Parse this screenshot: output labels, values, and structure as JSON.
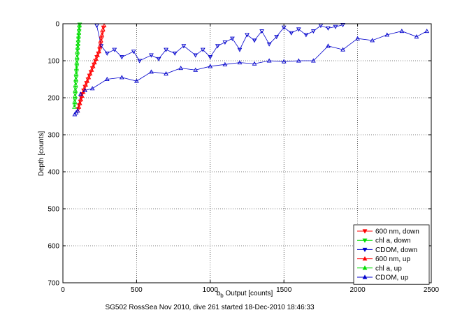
{
  "chart_data": {
    "type": "scatter",
    "title": "",
    "footer": "SG502 RossSea Nov 2010, dive 261 started 18-Dec-2010 18:46:33",
    "xlabel": "b",
    "xlabel_sub": "b",
    "xlabel_rest": " Output [counts]",
    "ylabel": "Depth [counts]",
    "xlim": [
      0,
      2500
    ],
    "ylim": [
      700,
      0
    ],
    "y_reversed": true,
    "grid": true,
    "legend_position": "bottom-right",
    "x_ticks": [
      "0",
      "500",
      "1000",
      "1500",
      "2000",
      "2500"
    ],
    "y_ticks": [
      "0",
      "100",
      "200",
      "300",
      "400",
      "500",
      "600",
      "700"
    ],
    "series": [
      {
        "name": "600 nm, down",
        "color": "#ff0000",
        "marker": "triangle-down",
        "x": [
          105,
          110,
          118,
          125,
          130,
          140,
          150,
          160,
          170,
          180,
          190,
          200,
          210,
          220,
          230,
          240,
          250,
          255,
          262,
          268,
          275
        ],
        "y": [
          230,
          220,
          210,
          200,
          190,
          180,
          170,
          160,
          150,
          140,
          130,
          120,
          110,
          100,
          90,
          80,
          70,
          55,
          40,
          25,
          10
        ]
      },
      {
        "name": "chl a, down",
        "color": "#00dd00",
        "marker": "triangle-down",
        "x": [
          80,
          82,
          84,
          86,
          88,
          90,
          92,
          94,
          96,
          98,
          100,
          102,
          104,
          106,
          108,
          110,
          112,
          114
        ],
        "y": [
          220,
          205,
          190,
          175,
          160,
          145,
          130,
          115,
          100,
          85,
          70,
          60,
          50,
          40,
          30,
          20,
          10,
          2
        ]
      },
      {
        "name": "CDOM, down",
        "color": "#0000cc",
        "marker": "triangle-down",
        "x": [
          230,
          260,
          300,
          350,
          400,
          480,
          520,
          600,
          650,
          700,
          760,
          820,
          900,
          950,
          1000,
          1050,
          1100,
          1150,
          1200,
          1250,
          1300,
          1350,
          1400,
          1450,
          1500,
          1550,
          1600,
          1650,
          1700,
          1750,
          1800,
          1850,
          1900
        ],
        "y": [
          5,
          60,
          80,
          70,
          90,
          75,
          100,
          85,
          95,
          70,
          80,
          60,
          85,
          70,
          90,
          60,
          50,
          40,
          70,
          30,
          45,
          20,
          55,
          35,
          10,
          25,
          15,
          30,
          20,
          5,
          12,
          8,
          3
        ]
      },
      {
        "name": "600 nm, up",
        "color": "#ff0000",
        "marker": "triangle-up",
        "x": [
          100,
          108,
          115,
          122,
          130,
          138,
          145,
          155,
          165,
          175,
          185,
          195,
          205,
          215,
          225,
          235,
          245,
          250,
          258,
          265,
          272,
          280
        ],
        "y": [
          235,
          225,
          215,
          205,
          195,
          185,
          175,
          165,
          155,
          145,
          135,
          125,
          115,
          105,
          95,
          85,
          75,
          60,
          45,
          30,
          15,
          5
        ]
      },
      {
        "name": "chl a, up",
        "color": "#00dd00",
        "marker": "triangle-up",
        "x": [
          78,
          80,
          82,
          84,
          86,
          88,
          90,
          92,
          94,
          96,
          98,
          100,
          102,
          104,
          106,
          108,
          110,
          112
        ],
        "y": [
          225,
          210,
          195,
          180,
          165,
          150,
          135,
          120,
          105,
          90,
          75,
          65,
          55,
          45,
          35,
          25,
          15,
          5
        ]
      },
      {
        "name": "CDOM, up",
        "color": "#0000cc",
        "marker": "triangle-up",
        "x": [
          80,
          90,
          100,
          120,
          150,
          200,
          300,
          400,
          500,
          600,
          700,
          800,
          900,
          1000,
          1100,
          1200,
          1300,
          1400,
          1500,
          1600,
          1700,
          1800,
          1900,
          2000,
          2100,
          2200,
          2300,
          2400,
          2470
        ],
        "y": [
          245,
          240,
          235,
          190,
          180,
          175,
          150,
          145,
          155,
          130,
          135,
          120,
          125,
          115,
          110,
          105,
          108,
          100,
          102,
          100,
          100,
          60,
          70,
          40,
          45,
          30,
          20,
          35,
          20
        ]
      }
    ]
  }
}
